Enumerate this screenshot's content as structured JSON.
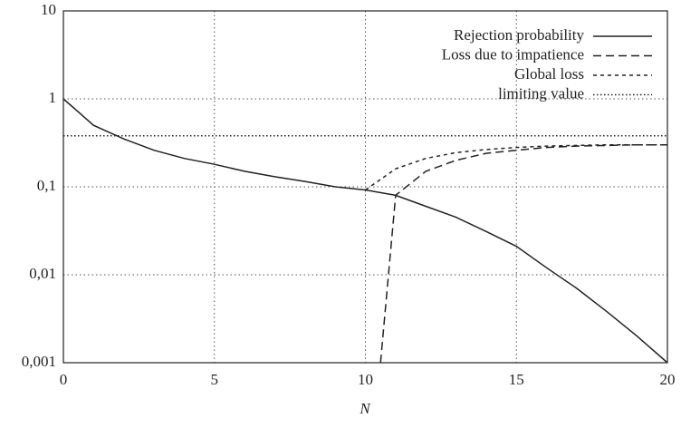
{
  "chart_data": {
    "type": "line",
    "x_label": "N",
    "ylog": true,
    "grid": true,
    "legend": "top-right",
    "xlim": [
      0,
      20
    ],
    "xticks": [
      0,
      5,
      10,
      15,
      20
    ],
    "ylim": [
      0.001,
      10
    ],
    "yticks": [
      {
        "value": 0.001,
        "label": "0,001"
      },
      {
        "value": 0.01,
        "label": "0,01"
      },
      {
        "value": 0.1,
        "label": "0,1"
      },
      1,
      10
    ],
    "series": [
      {
        "name": "Rejection probability",
        "color": "#222222",
        "style": "solid",
        "x": [
          0,
          1,
          2,
          3,
          4,
          5,
          6,
          7,
          8,
          9,
          10,
          11,
          12,
          13,
          14,
          15,
          16,
          17,
          18,
          19,
          20
        ],
        "values": [
          1,
          0.5,
          0.35,
          0.26,
          0.21,
          0.18,
          0.15,
          0.13,
          0.115,
          0.1,
          0.092,
          0.08,
          0.06,
          0.045,
          0.031,
          0.021,
          0.012,
          0.007,
          0.0038,
          0.002,
          0.001
        ]
      },
      {
        "name": "Loss due to impatience",
        "color": "#222222",
        "style": "dashed",
        "x": [
          10.5,
          11,
          12,
          13,
          14,
          15,
          16,
          17,
          18,
          19,
          20
        ],
        "values": [
          0.001,
          0.08,
          0.15,
          0.2,
          0.24,
          0.26,
          0.28,
          0.29,
          0.295,
          0.3,
          0.3
        ]
      },
      {
        "name": "Global loss",
        "color": "#222222",
        "style": "short-dashed",
        "x": [
          10,
          11,
          12,
          13,
          14,
          15,
          16,
          17,
          18,
          19,
          20
        ],
        "values": [
          0.092,
          0.16,
          0.21,
          0.245,
          0.265,
          0.28,
          0.29,
          0.295,
          0.3,
          0.3,
          0.3
        ]
      },
      {
        "name": "limiting value",
        "color": "#222222",
        "style": "dotted",
        "x": [
          0,
          20
        ],
        "values": [
          0.38,
          0.38
        ]
      }
    ]
  }
}
